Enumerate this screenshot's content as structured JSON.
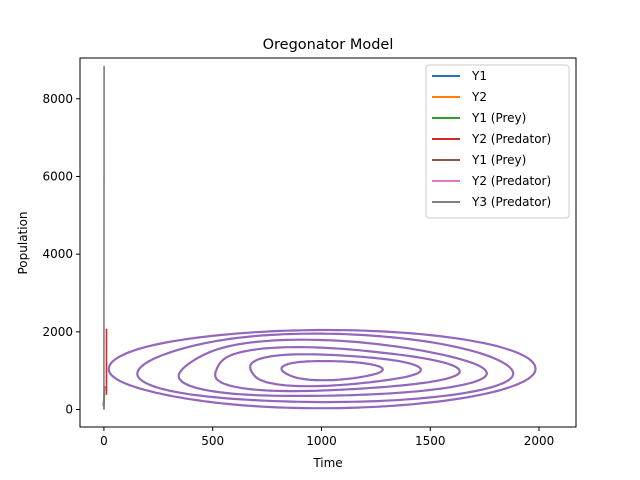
{
  "chart_data": {
    "type": "line",
    "title": "Oregonator Model",
    "xlabel": "Time",
    "ylabel": "Population",
    "xlim": [
      -110,
      2170
    ],
    "ylim": [
      -450,
      9050
    ],
    "xticks": [
      0,
      500,
      1000,
      1500,
      2000
    ],
    "yticks": [
      0,
      2000,
      4000,
      6000,
      8000
    ],
    "grid": false,
    "legend_position": "top-right",
    "series": [
      {
        "name": "Y1",
        "color": "#1f77b4",
        "kind": "spike",
        "x": [
          0,
          2
        ],
        "y": [
          0,
          60
        ]
      },
      {
        "name": "Y2",
        "color": "#ff7f0e",
        "kind": "spike",
        "x": [
          0,
          3
        ],
        "y": [
          20,
          10
        ]
      },
      {
        "name": "Y1 (Prey)",
        "color": "#2ca02c",
        "kind": "spike",
        "x": [
          1,
          2
        ],
        "y": [
          80,
          400
        ]
      },
      {
        "name": "Y2 (Predator)",
        "color": "#d62728",
        "kind": "spike",
        "x": [
          12,
          12
        ],
        "y": [
          380,
          2080
        ]
      },
      {
        "name": "Y1 (Prey)",
        "color": "#8c564b",
        "kind": "spike",
        "x": [
          -3,
          4
        ],
        "y": [
          100,
          600
        ]
      },
      {
        "name": "Y2 (Predator)",
        "color": "#e377c2",
        "kind": "spike",
        "x": [
          -1,
          2
        ],
        "y": [
          0,
          50
        ]
      },
      {
        "name": "Y3 (Predator)",
        "color": "#7f7f7f",
        "kind": "spike",
        "x": [
          0,
          1
        ],
        "y": [
          0,
          8850
        ]
      }
    ],
    "phase_orbit": {
      "color": "#9467bd",
      "center": [
        1050,
        1000
      ],
      "loops": [
        {
          "rx": 230,
          "ry": 260
        },
        {
          "rx": 390,
          "ry": 430
        },
        {
          "rx": 560,
          "ry": 590
        },
        {
          "rx": 700,
          "ry": 760
        },
        {
          "rx": 860,
          "ry": 920
        },
        {
          "rx": 980,
          "ry": 1050
        }
      ]
    }
  }
}
